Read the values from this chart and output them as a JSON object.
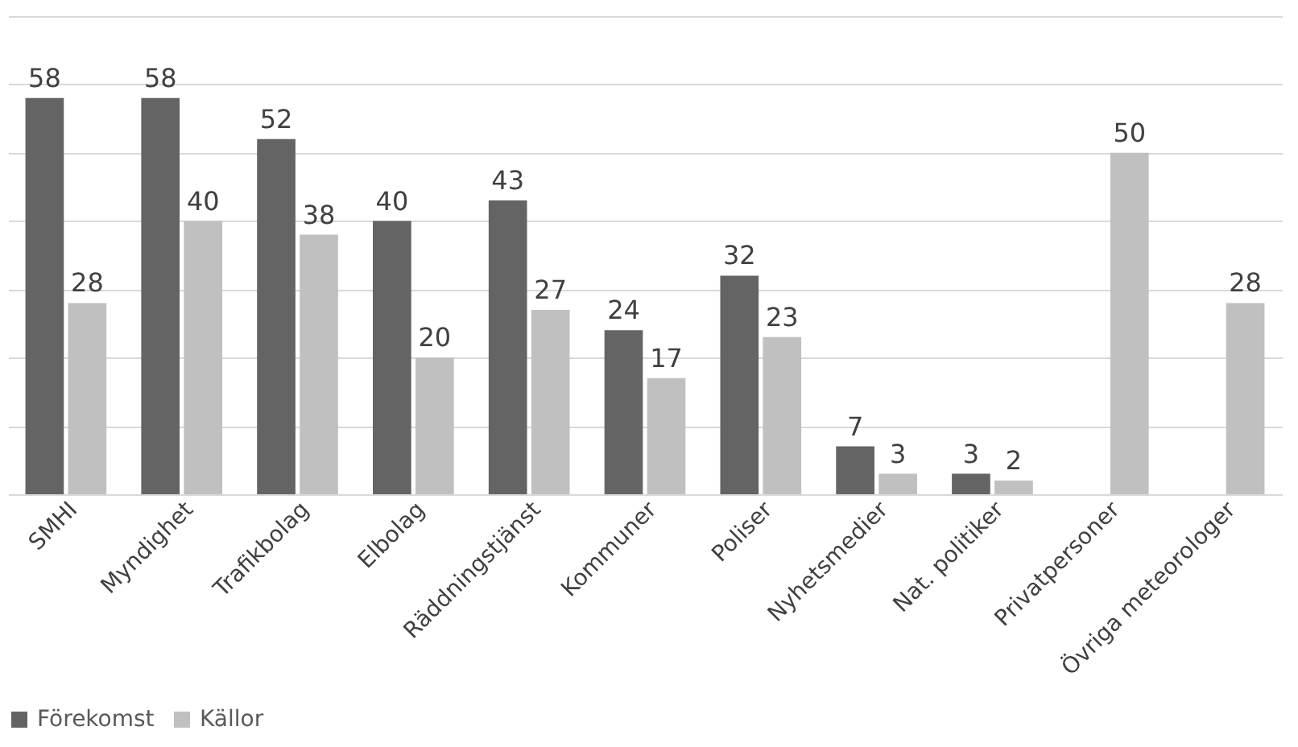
{
  "chart_data": {
    "type": "bar",
    "categories": [
      "SMHI",
      "Myndighet",
      "Trafikbolag",
      "Elbolag",
      "Räddningstjänst",
      "Kommuner",
      "Poliser",
      "Nyhetsmedier",
      "Nat. politiker",
      "Privatpersoner",
      "Övriga meteorologer"
    ],
    "series": [
      {
        "name": "Förekomst",
        "color": "#646464",
        "values": [
          58,
          58,
          52,
          40,
          43,
          24,
          32,
          7,
          3,
          null,
          null
        ]
      },
      {
        "name": "Källor",
        "color": "#c0c0c0",
        "values": [
          28,
          40,
          38,
          20,
          27,
          17,
          23,
          3,
          2,
          50,
          28
        ]
      }
    ],
    "ylim": [
      0,
      70
    ],
    "yticks": [
      {
        "value": 0,
        "label": null
      },
      {
        "value": 10,
        "label": null
      },
      {
        "value": 20,
        "label": null
      },
      {
        "value": 30,
        "label": null
      },
      {
        "value": 40,
        "label": null
      },
      {
        "value": 50,
        "label": null
      },
      {
        "value": 60,
        "label": null
      },
      {
        "value": 70,
        "label": null
      }
    ],
    "tick_labels": "x",
    "grid": "y",
    "legend": "bottom",
    "data_labels": true
  }
}
